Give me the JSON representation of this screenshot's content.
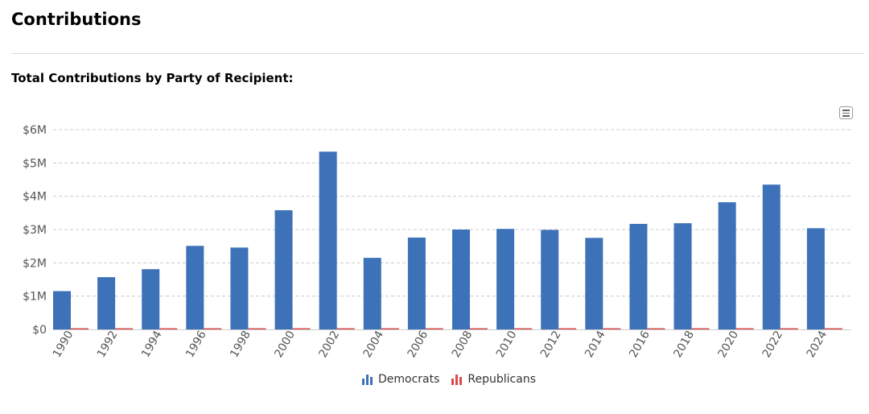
{
  "page": {
    "title": "Contributions"
  },
  "chart_data": {
    "type": "bar",
    "title": "Total Contributions by Party of Recipient:",
    "categories": [
      "1990",
      "1992",
      "1994",
      "1996",
      "1998",
      "2000",
      "2002",
      "2004",
      "2006",
      "2008",
      "2010",
      "2012",
      "2014",
      "2016",
      "2018",
      "2020",
      "2022",
      "2024"
    ],
    "series": [
      {
        "name": "Democrats",
        "color": "#3d72b8",
        "values": [
          1.15,
          1.57,
          1.81,
          2.51,
          2.46,
          3.58,
          5.34,
          2.15,
          2.76,
          3.0,
          3.02,
          2.99,
          2.75,
          3.17,
          3.19,
          3.82,
          4.35,
          3.04
        ]
      },
      {
        "name": "Republicans",
        "color": "#d94b4b",
        "values": [
          0.01,
          0.01,
          0.005,
          0.01,
          0.01,
          0.01,
          0.01,
          0.01,
          0.01,
          0.01,
          0.005,
          0.005,
          0.01,
          0.005,
          0.005,
          0.005,
          0.005,
          0.005
        ]
      }
    ],
    "yticks": [
      "$0",
      "$1M",
      "$2M",
      "$3M",
      "$4M",
      "$5M",
      "$6M"
    ],
    "ylim": [
      0,
      6
    ],
    "yunit": "millions USD",
    "grid": true,
    "legend_position": "bottom-center"
  },
  "toolbar": {
    "menu_icon": "hamburger-menu-icon"
  }
}
